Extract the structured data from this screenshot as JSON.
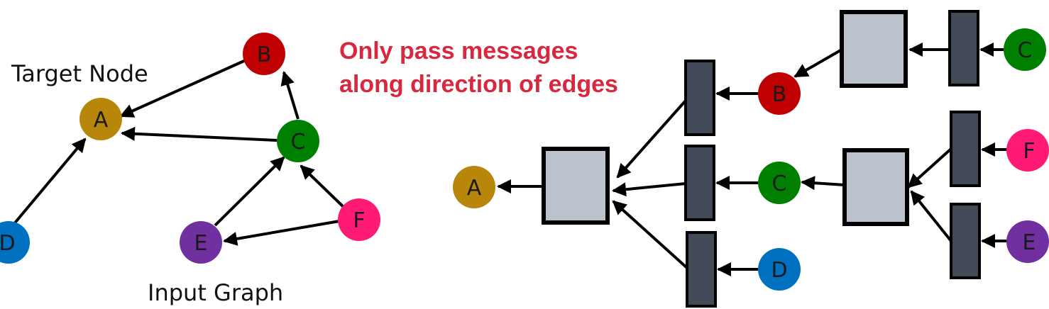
{
  "captions": {
    "target_node": "Target Node",
    "input_graph": "Input Graph",
    "message_line1": "Only pass messages",
    "message_line2": "along direction of edges"
  },
  "nodes": {
    "A": {
      "label": "A",
      "color": "#b8860b"
    },
    "B": {
      "label": "B",
      "color": "#c00000"
    },
    "C": {
      "label": "C",
      "color": "#008000"
    },
    "D": {
      "label": "D",
      "color": "#0070c0"
    },
    "E": {
      "label": "E",
      "color": "#7030a0"
    },
    "F": {
      "label": "F",
      "color": "#ff1a75"
    }
  },
  "colors": {
    "message": "#d8283f",
    "aggregator": "#bcc2cb",
    "transform": "#434a57"
  }
}
